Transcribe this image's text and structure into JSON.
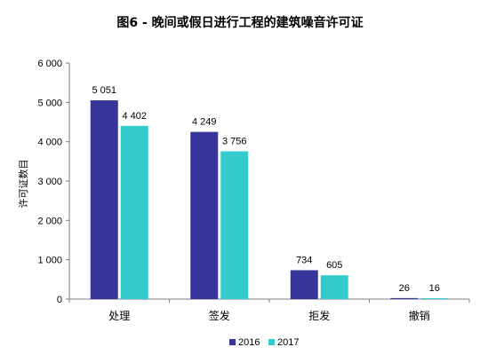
{
  "chart_data": {
    "type": "bar",
    "title": "图6 - 晚间或假日进行工程的建筑噪音许可证",
    "xlabel": "",
    "ylabel": "许可证数目",
    "categories": [
      "处理",
      "签发",
      "拒发",
      "撤销"
    ],
    "series": [
      {
        "name": "2016",
        "color": "#35359a",
        "values": [
          5051,
          4249,
          734,
          26
        ]
      },
      {
        "name": "2017",
        "color": "#33cccc",
        "values": [
          4402,
          3756,
          605,
          16
        ]
      }
    ],
    "data_labels": [
      [
        "5 051",
        "4 249",
        "734",
        "26"
      ],
      [
        "4 402",
        "3 756",
        "605",
        "16"
      ]
    ],
    "ylim": [
      0,
      6000
    ],
    "yticks": [
      0,
      1000,
      2000,
      3000,
      4000,
      5000,
      6000
    ],
    "ytick_labels": [
      "0",
      "1 000",
      "2 000",
      "3 000",
      "4 000",
      "5 000",
      "6 000"
    ],
    "grid": false,
    "legend_position": "bottom"
  }
}
